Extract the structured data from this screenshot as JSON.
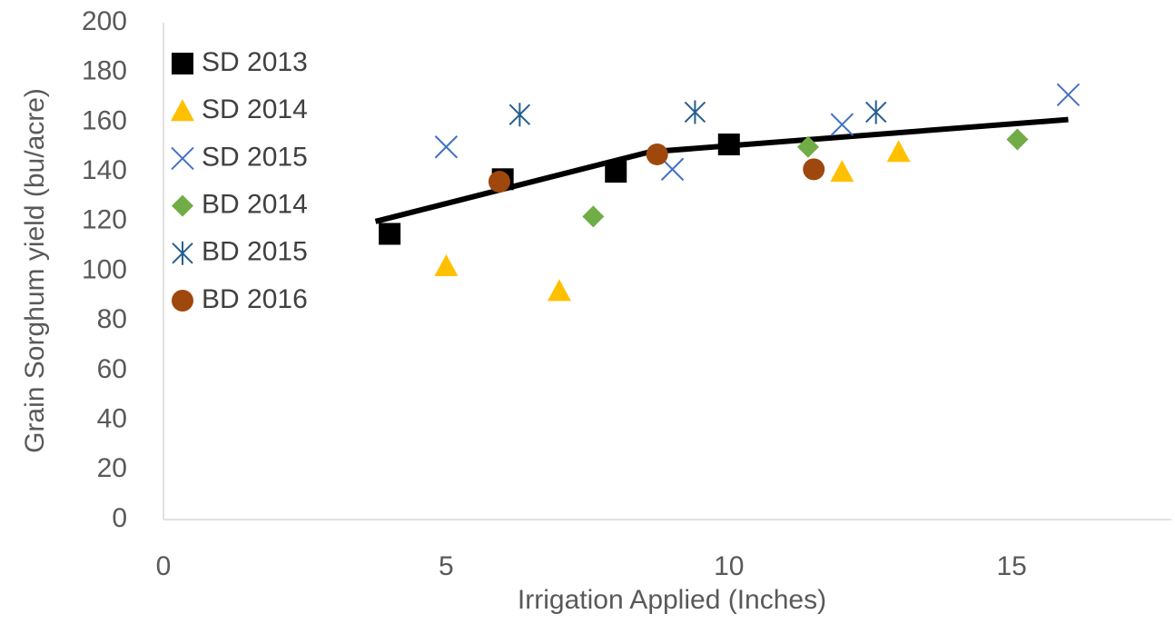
{
  "chart_data": {
    "type": "scatter",
    "x_label": "Irrigation  Applied (Inches)",
    "y_label": "Grain Sorghum yield (bu/acre)",
    "xlim": [
      0,
      18
    ],
    "ylim": [
      0,
      200
    ],
    "xticks": [
      0,
      5,
      10,
      15
    ],
    "yticks": [
      0,
      20,
      40,
      60,
      80,
      100,
      120,
      140,
      160,
      180,
      200
    ],
    "grid": false,
    "legend": "upper-left",
    "series": [
      {
        "name": "SD 2013",
        "color": "#000000",
        "marker": "square",
        "x": [
          4,
          6,
          8,
          10
        ],
        "values": [
          115,
          137,
          140,
          151
        ]
      },
      {
        "name": "SD 2014",
        "color": "#FFC000",
        "marker": "triangle",
        "x": [
          5,
          7,
          12,
          13
        ],
        "values": [
          102,
          92,
          140,
          148
        ]
      },
      {
        "name": "SD 2015",
        "color": "#4472C4",
        "marker": "x",
        "x": [
          5,
          9,
          12,
          16
        ],
        "values": [
          150,
          141,
          159,
          171
        ]
      },
      {
        "name": "BD 2014",
        "color": "#70AD47",
        "marker": "diamond",
        "x": [
          7.6,
          11.4,
          15.1
        ],
        "values": [
          122,
          150,
          153
        ]
      },
      {
        "name": "BD 2015",
        "color": "#255E91",
        "marker": "asterisk",
        "x": [
          6.3,
          9.4,
          12.6
        ],
        "values": [
          163,
          164,
          164
        ]
      },
      {
        "name": "BD 2016",
        "color": "#9E480E",
        "marker": "circle",
        "x": [
          5.94,
          8.73,
          11.5
        ],
        "values": [
          136,
          147,
          141
        ]
      }
    ],
    "trendline": {
      "color": "#000000",
      "x": [
        3.75,
        8.6,
        16
      ],
      "values": [
        120,
        148,
        161
      ]
    }
  }
}
